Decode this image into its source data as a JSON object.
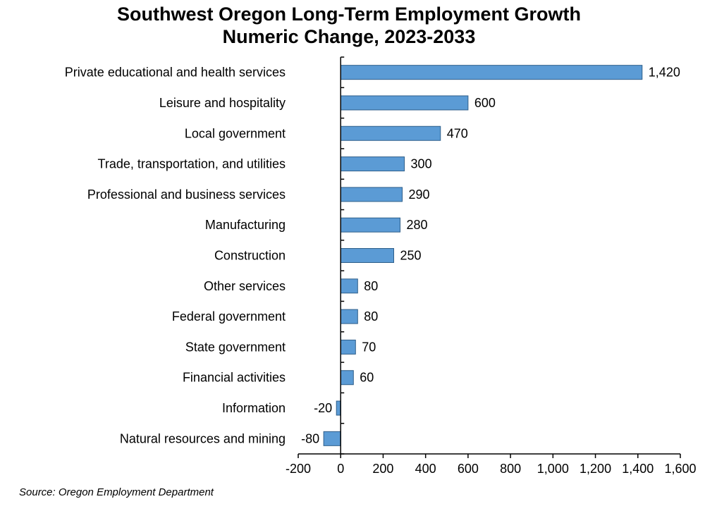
{
  "chart_data": {
    "type": "bar",
    "orientation": "horizontal",
    "title": [
      "Southwest Oregon Long-Term Employment Growth",
      "Numeric Change, 2023-2033"
    ],
    "categories": [
      "Private educational and health services",
      "Leisure and hospitality",
      "Local government",
      "Trade, transportation, and utilities",
      "Professional and business services",
      "Manufacturing",
      "Construction",
      "Other services",
      "Federal government",
      "State government",
      "Financial activities",
      "Information",
      "Natural resources and mining"
    ],
    "values": [
      1420,
      600,
      470,
      300,
      290,
      280,
      250,
      80,
      80,
      70,
      60,
      -20,
      -80
    ],
    "value_labels": [
      "1,420",
      "600",
      "470",
      "300",
      "290",
      "280",
      "250",
      "80",
      "80",
      "70",
      "60",
      "-20",
      "-80"
    ],
    "xlim": [
      -200,
      1600
    ],
    "xticks": [
      -200,
      0,
      200,
      400,
      600,
      800,
      1000,
      1200,
      1400,
      1600
    ],
    "xtick_labels": [
      "-200",
      "0",
      "200",
      "400",
      "600",
      "800",
      "1,000",
      "1,200",
      "1,400",
      "1,600"
    ],
    "xlabel": "",
    "ylabel": "",
    "grid": false,
    "legend": "none",
    "bar_color": "#5b9bd5",
    "bar_edge_color": "#2f5f8a"
  },
  "source": "Source: Oregon Employment Department"
}
